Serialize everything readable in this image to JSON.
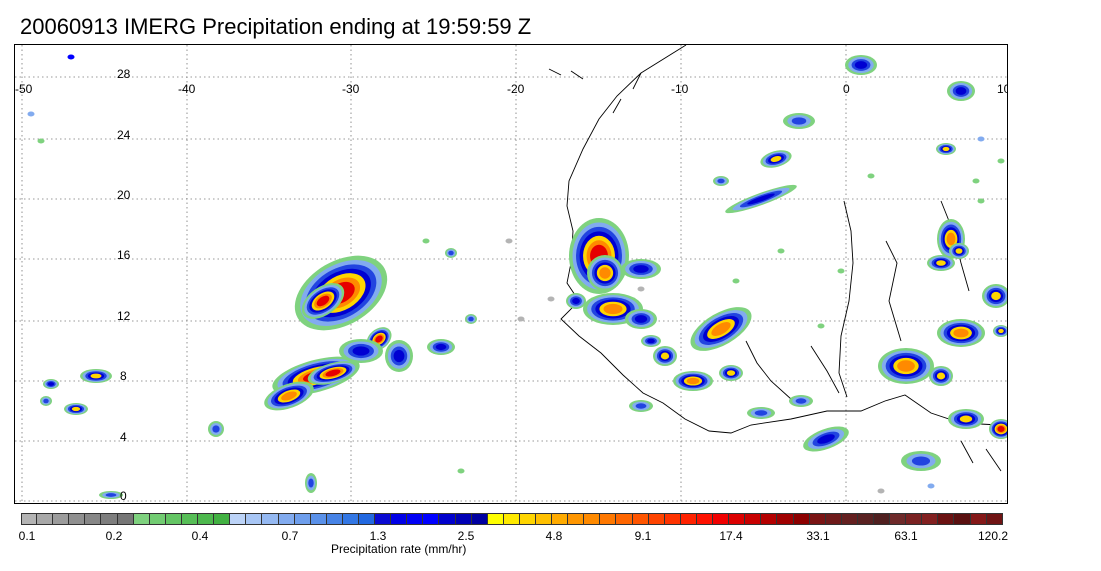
{
  "title": "20060913 IMERG Precipitation ending at 19:59:59 Z",
  "map": {
    "lon_range": [
      -50,
      10
    ],
    "lat_range": [
      -0.5,
      28.5
    ],
    "lon_ticks": [
      "-50",
      "-40",
      "-30",
      "-20",
      "-10",
      "0",
      "10"
    ],
    "lat_ticks": [
      "28",
      "24",
      "20",
      "16",
      "12",
      "8",
      "4",
      "0"
    ],
    "gridlines": "dotted",
    "coastline_color": "#000000"
  },
  "colorbar": {
    "colors": [
      "#b4b4b4",
      "#a8a8a8",
      "#9c9c9c",
      "#909090",
      "#878787",
      "#7e7e7e",
      "#767676",
      "#7fd27f",
      "#72cc72",
      "#64c564",
      "#57be57",
      "#4db84d",
      "#42b142",
      "#bcd3f7",
      "#a8c6f5",
      "#95b9f2",
      "#82abef",
      "#6e9eec",
      "#5a91e9",
      "#4783e6",
      "#3377e4",
      "#2268e0",
      "#0a0ad2",
      "#0000e6",
      "#0000f5",
      "#0000ff",
      "#0000cc",
      "#0000b5",
      "#0000a0",
      "#ffff00",
      "#ffea00",
      "#ffd500",
      "#ffc000",
      "#ffab00",
      "#ff9600",
      "#ff8a00",
      "#ff7800",
      "#ff6600",
      "#ff5500",
      "#ff4400",
      "#ff3300",
      "#ff2200",
      "#ff1100",
      "#f00000",
      "#dc0000",
      "#c80000",
      "#b40000",
      "#a00000",
      "#8c0000",
      "#7a1414",
      "#6e1a1a",
      "#642020",
      "#5a2222",
      "#502020",
      "#6e2a2a",
      "#7a2222",
      "#822020",
      "#6b1212",
      "#5a1010",
      "#841818",
      "#701414"
    ],
    "tick_labels": [
      "0.1",
      "0.2",
      "0.4",
      "0.7",
      "1.3",
      "2.5",
      "4.8",
      "9.1",
      "17.4",
      "33.1",
      "63.1",
      "120.2"
    ],
    "label": "Precipitation rate (mm/hr)"
  }
}
